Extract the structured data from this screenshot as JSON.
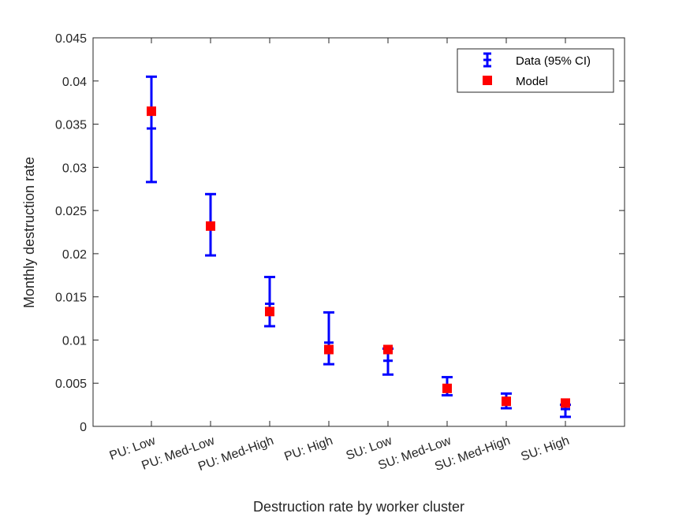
{
  "chart_data": {
    "type": "scatter",
    "xlabel": "Destruction rate by worker cluster",
    "ylabel": "Monthly destruction rate",
    "categories": [
      "PU: Low",
      "PU: Med-Low",
      "PU: Med-High",
      "PU: High",
      "SU: Low",
      "SU: Med-Low",
      "SU: Med-High",
      "SU: High"
    ],
    "ylim": [
      0,
      0.045
    ],
    "yticks": [
      0,
      0.005,
      0.01,
      0.015,
      0.02,
      0.025,
      0.03,
      0.035,
      0.04,
      0.045
    ],
    "ytick_labels": [
      "0",
      "0.005",
      "0.01",
      "0.015",
      "0.02",
      "0.025",
      "0.03",
      "0.035",
      "0.04",
      "0.045"
    ],
    "grid": false,
    "legend_position": "top-right",
    "series": [
      {
        "name": "Data (95% CI)",
        "kind": "errorbar",
        "color": "#0000ff",
        "values": [
          0.0345,
          0.0232,
          0.0142,
          0.0097,
          0.0076,
          0.0046,
          0.003,
          0.002
        ],
        "lower": [
          0.0283,
          0.0198,
          0.0116,
          0.0072,
          0.006,
          0.0036,
          0.0021,
          0.0011
        ],
        "upper": [
          0.0405,
          0.0269,
          0.0173,
          0.0132,
          0.009,
          0.0057,
          0.0038,
          0.0025
        ]
      },
      {
        "name": "Model",
        "kind": "marker",
        "color": "#ff0000",
        "values": [
          0.0365,
          0.0232,
          0.0133,
          0.0089,
          0.0089,
          0.0044,
          0.0029,
          0.0027
        ]
      }
    ]
  }
}
